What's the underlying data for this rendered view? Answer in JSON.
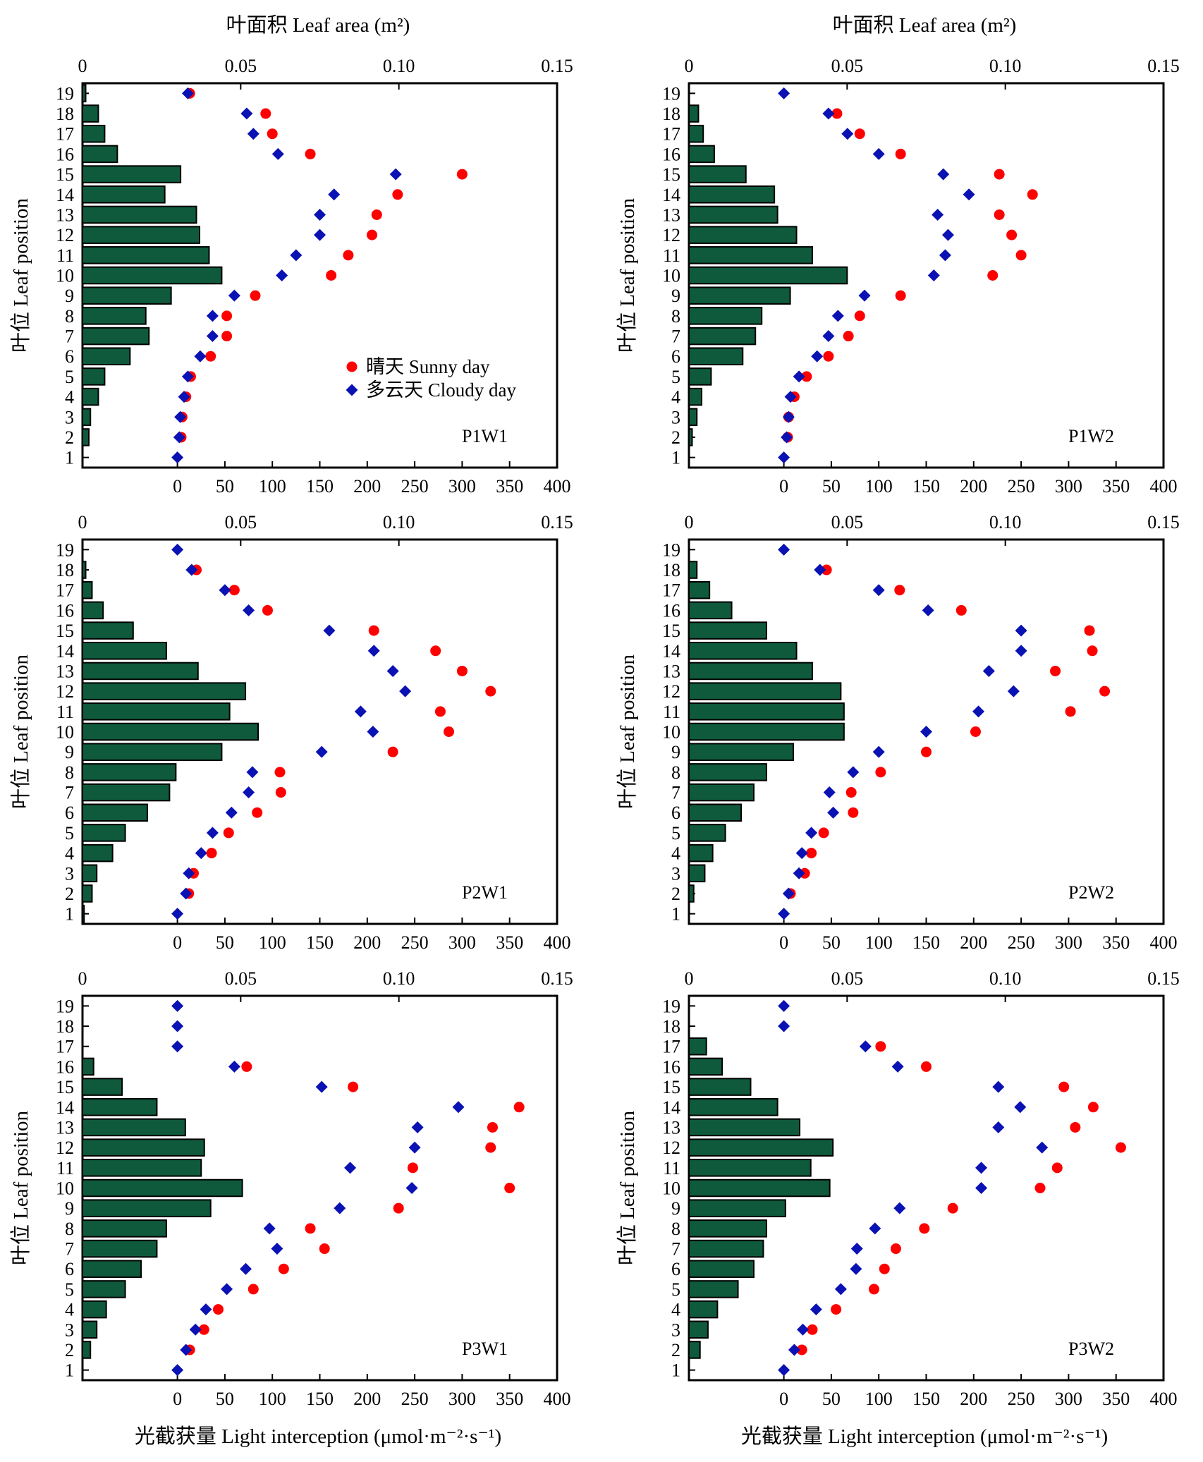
{
  "figure": {
    "top_axis_title": "叶面积 Leaf area (m²)",
    "bottom_axis_title": "光截获量 Light interception (μmol·m⁻²·s⁻¹)",
    "y_axis_title": "叶位 Leaf position",
    "legend": {
      "sunny": "晴天 Sunny day",
      "cloudy": "多云天 Cloudy day"
    }
  },
  "colors": {
    "bar": "#0f5a3c",
    "sunny": "#ff0000",
    "cloudy": "#0a12b4"
  },
  "chart_data": [
    {
      "type": "bar",
      "panel": "P1W1",
      "title": "P1W1",
      "categories": [
        1,
        2,
        3,
        4,
        5,
        6,
        7,
        8,
        9,
        10,
        11,
        12,
        13,
        14,
        15,
        16,
        17,
        18,
        19
      ],
      "top_axis": {
        "label": "叶面积 Leaf area (m²)",
        "range": [
          0,
          0.15
        ],
        "ticks": [
          "0",
          "0.05",
          "0.10",
          "0.15"
        ]
      },
      "bottom_axis": {
        "label": "光截获量 Light interception (μmol·m⁻²·s⁻¹)",
        "range": [
          -100,
          400
        ],
        "ticks": [
          "0",
          "50",
          "100",
          "150",
          "200",
          "250",
          "300",
          "350",
          "400"
        ]
      },
      "leaf_area": [
        0,
        0.002,
        0.0025,
        0.005,
        0.007,
        0.015,
        0.021,
        0.02,
        0.028,
        0.044,
        0.04,
        0.037,
        0.036,
        0.026,
        0.031,
        0.011,
        0.007,
        0.005,
        0.001
      ],
      "series": [
        {
          "name": "晴天 Sunny day",
          "values": [
            null,
            4,
            5,
            9,
            14,
            35,
            52,
            52,
            82,
            162,
            180,
            205,
            210,
            232,
            300,
            140,
            100,
            93,
            13
          ]
        },
        {
          "name": "多云天 Cloudy day",
          "values": [
            0,
            2,
            3,
            7,
            11,
            24,
            37,
            37,
            60,
            110,
            125,
            150,
            150,
            165,
            230,
            106,
            80,
            73,
            11
          ]
        }
      ]
    },
    {
      "type": "bar",
      "panel": "P1W2",
      "title": "P1W2",
      "categories": [
        1,
        2,
        3,
        4,
        5,
        6,
        7,
        8,
        9,
        10,
        11,
        12,
        13,
        14,
        15,
        16,
        17,
        18,
        19
      ],
      "top_axis": {
        "label": "叶面积 Leaf area (m²)",
        "range": [
          0,
          0.15
        ],
        "ticks": [
          "0",
          "0.05",
          "0.10",
          "0.15"
        ]
      },
      "bottom_axis": {
        "label": "光截获量 Light interception (μmol·m⁻²·s⁻¹)",
        "range": [
          -100,
          400
        ],
        "ticks": [
          "0",
          "50",
          "100",
          "150",
          "200",
          "250",
          "300",
          "350",
          "400"
        ]
      },
      "leaf_area": [
        0,
        0.001,
        0.0025,
        0.004,
        0.007,
        0.017,
        0.021,
        0.023,
        0.032,
        0.05,
        0.039,
        0.034,
        0.028,
        0.027,
        0.018,
        0.008,
        0.0045,
        0.003,
        0
      ],
      "series": [
        {
          "name": "晴天 Sunny day",
          "values": [
            null,
            4,
            5,
            11,
            24,
            47,
            68,
            80,
            123,
            220,
            250,
            240,
            227,
            262,
            227,
            123,
            80,
            56,
            null
          ]
        },
        {
          "name": "多云天 Cloudy day",
          "values": [
            0,
            3,
            5,
            7,
            16,
            35,
            47,
            57,
            85,
            158,
            170,
            173,
            162,
            195,
            168,
            100,
            67,
            47,
            0
          ]
        }
      ]
    },
    {
      "type": "bar",
      "panel": "P2W1",
      "title": "P2W1",
      "categories": [
        1,
        2,
        3,
        4,
        5,
        6,
        7,
        8,
        9,
        10,
        11,
        12,
        13,
        14,
        15,
        16,
        17,
        18,
        19
      ],
      "top_axis": {
        "label": "叶面积 Leaf area (m²)",
        "range": [
          0,
          0.15
        ],
        "ticks": [
          "0",
          "0.05",
          "0.10",
          "0.15"
        ]
      },
      "bottom_axis": {
        "label": "光截获量 Light interception (μmol·m⁻²·s⁻¹)",
        "range": [
          -100,
          400
        ],
        "ticks": [
          "0",
          "50",
          "100",
          "150",
          "200",
          "250",
          "300",
          "350",
          "400"
        ]
      },
      "leaf_area": [
        0.0005,
        0.003,
        0.0045,
        0.0095,
        0.0135,
        0.0205,
        0.0275,
        0.0295,
        0.044,
        0.0555,
        0.0465,
        0.0515,
        0.0365,
        0.0265,
        0.016,
        0.0065,
        0.003,
        0.001,
        0
      ],
      "series": [
        {
          "name": "晴天 Sunny day",
          "values": [
            null,
            12,
            17,
            36,
            54,
            84,
            109,
            108,
            227,
            286,
            277,
            330,
            300,
            272,
            207,
            95,
            60,
            20,
            null
          ]
        },
        {
          "name": "多云天 Cloudy day",
          "values": [
            0,
            9,
            12,
            25,
            37,
            57,
            75,
            79,
            152,
            206,
            193,
            240,
            227,
            207,
            160,
            75,
            50,
            15,
            0
          ]
        }
      ]
    },
    {
      "type": "bar",
      "panel": "P2W2",
      "title": "P2W2",
      "categories": [
        1,
        2,
        3,
        4,
        5,
        6,
        7,
        8,
        9,
        10,
        11,
        12,
        13,
        14,
        15,
        16,
        17,
        18,
        19
      ],
      "top_axis": {
        "label": "叶面积 Leaf area (m²)",
        "range": [
          0,
          0.15
        ],
        "ticks": [
          "0",
          "0.05",
          "0.10",
          "0.15"
        ]
      },
      "bottom_axis": {
        "label": "光截获量 Light interception (μmol·m⁻²·s⁻¹)",
        "range": [
          -100,
          400
        ],
        "ticks": [
          "0",
          "50",
          "100",
          "150",
          "200",
          "250",
          "300",
          "350",
          "400"
        ]
      },
      "leaf_area": [
        0,
        0.0015,
        0.005,
        0.0075,
        0.0115,
        0.0165,
        0.0205,
        0.0245,
        0.033,
        0.049,
        0.049,
        0.048,
        0.039,
        0.034,
        0.0245,
        0.0135,
        0.0065,
        0.0025,
        0
      ],
      "series": [
        {
          "name": "晴天 Sunny day",
          "values": [
            null,
            7,
            22,
            29,
            42,
            73,
            71,
            102,
            150,
            202,
            302,
            338,
            286,
            325,
            322,
            187,
            122,
            45,
            null
          ]
        },
        {
          "name": "多云天 Cloudy day",
          "values": [
            0,
            5,
            16,
            19,
            29,
            52,
            48,
            73,
            100,
            150,
            205,
            242,
            216,
            250,
            250,
            152,
            100,
            38,
            0
          ]
        }
      ]
    },
    {
      "type": "bar",
      "panel": "P3W1",
      "title": "P3W1",
      "categories": [
        1,
        2,
        3,
        4,
        5,
        6,
        7,
        8,
        9,
        10,
        11,
        12,
        13,
        14,
        15,
        16,
        17,
        18,
        19
      ],
      "top_axis": {
        "label": "叶面积 Leaf area (m²)",
        "range": [
          0,
          0.15
        ],
        "ticks": [
          "0",
          "0.05",
          "0.10",
          "0.15"
        ]
      },
      "bottom_axis": {
        "label": "光截获量 Light interception (μmol·m⁻²·s⁻¹)",
        "range": [
          -100,
          400
        ],
        "ticks": [
          "0",
          "50",
          "100",
          "150",
          "200",
          "250",
          "300",
          "350",
          "400"
        ]
      },
      "leaf_area": [
        0,
        0.0025,
        0.0045,
        0.0075,
        0.0135,
        0.0185,
        0.0235,
        0.0265,
        0.0405,
        0.0505,
        0.0375,
        0.0385,
        0.0325,
        0.0235,
        0.0125,
        0.0035,
        0,
        0,
        0
      ],
      "series": [
        {
          "name": "晴天 Sunny day",
          "values": [
            null,
            13,
            28,
            43,
            80,
            112,
            155,
            140,
            233,
            350,
            248,
            330,
            332,
            360,
            185,
            73,
            null,
            null,
            null
          ]
        },
        {
          "name": "多云天 Cloudy day",
          "values": [
            0,
            9,
            19,
            30,
            52,
            72,
            105,
            97,
            171,
            247,
            182,
            250,
            253,
            296,
            152,
            60,
            0,
            0,
            0
          ]
        }
      ]
    },
    {
      "type": "bar",
      "panel": "P3W2",
      "title": "P3W2",
      "categories": [
        1,
        2,
        3,
        4,
        5,
        6,
        7,
        8,
        9,
        10,
        11,
        12,
        13,
        14,
        15,
        16,
        17,
        18,
        19
      ],
      "top_axis": {
        "label": "叶面积 Leaf area (m²)",
        "range": [
          0,
          0.15
        ],
        "ticks": [
          "0",
          "0.05",
          "0.10",
          "0.15"
        ]
      },
      "bottom_axis": {
        "label": "光截获量 Light interception (μmol·m⁻²·s⁻¹)",
        "range": [
          -100,
          400
        ],
        "ticks": [
          "0",
          "50",
          "100",
          "150",
          "200",
          "250",
          "300",
          "350",
          "400"
        ]
      },
      "leaf_area": [
        0,
        0.0035,
        0.006,
        0.009,
        0.0155,
        0.0205,
        0.0235,
        0.0245,
        0.0305,
        0.0445,
        0.0385,
        0.0455,
        0.035,
        0.028,
        0.0195,
        0.0105,
        0.0055,
        0,
        0
      ],
      "series": [
        {
          "name": "晴天 Sunny day",
          "values": [
            null,
            19,
            30,
            55,
            95,
            106,
            118,
            148,
            178,
            270,
            288,
            355,
            307,
            326,
            295,
            150,
            102,
            null,
            null
          ]
        },
        {
          "name": "多云天 Cloudy day",
          "values": [
            0,
            11,
            20,
            34,
            60,
            76,
            77,
            96,
            122,
            208,
            208,
            272,
            226,
            249,
            226,
            120,
            86,
            0,
            0
          ]
        }
      ]
    }
  ]
}
